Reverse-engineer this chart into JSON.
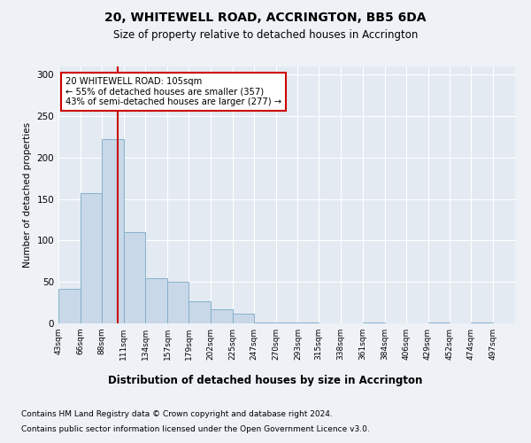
{
  "title1": "20, WHITEWELL ROAD, ACCRINGTON, BB5 6DA",
  "title2": "Size of property relative to detached houses in Accrington",
  "xlabel": "Distribution of detached houses by size in Accrington",
  "ylabel": "Number of detached properties",
  "footnote1": "Contains HM Land Registry data © Crown copyright and database right 2024.",
  "footnote2": "Contains public sector information licensed under the Open Government Licence v3.0.",
  "annotation_line1": "20 WHITEWELL ROAD: 105sqm",
  "annotation_line2": "← 55% of detached houses are smaller (357)",
  "annotation_line3": "43% of semi-detached houses are larger (277) →",
  "property_size": 105,
  "bar_left_edges": [
    43,
    66,
    88,
    111,
    134,
    157,
    179,
    202,
    225,
    247,
    270,
    293,
    315,
    338,
    361,
    384,
    406,
    429,
    452,
    474
  ],
  "bar_widths": [
    23,
    22,
    23,
    23,
    23,
    22,
    23,
    23,
    22,
    23,
    23,
    22,
    23,
    23,
    23,
    22,
    23,
    23,
    22,
    23
  ],
  "bar_heights": [
    42,
    157,
    222,
    110,
    55,
    50,
    27,
    17,
    12,
    1,
    1,
    1,
    0,
    0,
    1,
    0,
    0,
    1,
    0,
    1
  ],
  "bar_color": "#c8d8e8",
  "bar_edge_color": "#7aaac8",
  "annotation_box_color": "#cc0000",
  "vline_color": "#cc0000",
  "ylim": [
    0,
    310
  ],
  "yticks": [
    0,
    50,
    100,
    150,
    200,
    250,
    300
  ],
  "xlim": [
    43,
    520
  ],
  "tick_labels": [
    "43sqm",
    "66sqm",
    "88sqm",
    "111sqm",
    "134sqm",
    "157sqm",
    "179sqm",
    "202sqm",
    "225sqm",
    "247sqm",
    "270sqm",
    "293sqm",
    "315sqm",
    "338sqm",
    "361sqm",
    "384sqm",
    "406sqm",
    "429sqm",
    "452sqm",
    "474sqm",
    "497sqm"
  ],
  "tick_positions": [
    43,
    66,
    88,
    111,
    134,
    157,
    179,
    202,
    225,
    247,
    270,
    293,
    315,
    338,
    361,
    384,
    406,
    429,
    452,
    474,
    497
  ],
  "background_color": "#eef2f7",
  "plot_bg_color": "#e4eaf2"
}
